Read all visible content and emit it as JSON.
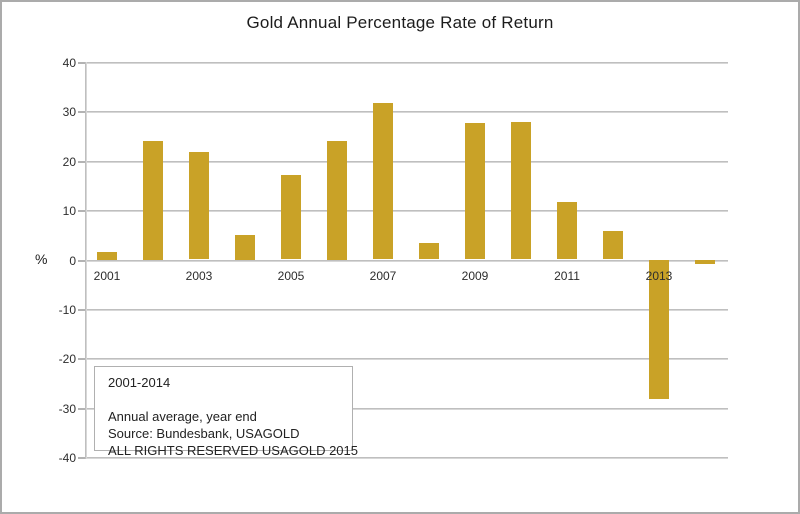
{
  "chart_data": {
    "type": "bar",
    "title": "Gold Annual Percentage Rate of Return",
    "ylabel": "%",
    "xlabel": "",
    "categories": [
      2001,
      2002,
      2003,
      2004,
      2005,
      2006,
      2007,
      2008,
      2009,
      2010,
      2011,
      2012,
      2013,
      2014
    ],
    "values": [
      1.5,
      24.0,
      21.8,
      5.0,
      17.1,
      24.0,
      31.6,
      3.4,
      27.6,
      27.8,
      11.6,
      5.7,
      -27.8,
      -0.5
    ],
    "ylim": [
      -40,
      40
    ],
    "y_ticks": [
      40,
      30,
      20,
      10,
      0,
      -10,
      -20,
      -30,
      -40
    ],
    "x_tick_labels": [
      "2001",
      "2003",
      "2005",
      "2007",
      "2009",
      "2011",
      "2013"
    ],
    "grid": true,
    "legend_position": "none",
    "colors": {
      "bar": "#C9A227",
      "grid": "#b3b3b3",
      "text": "#2d2d2d"
    },
    "annotation": {
      "lines": [
        "2001-2014",
        "",
        "Annual average, year end",
        "Source: Bundesbank, USAGOLD",
        "ALL RIGHTS RESERVED USAGOLD 2015"
      ]
    }
  }
}
